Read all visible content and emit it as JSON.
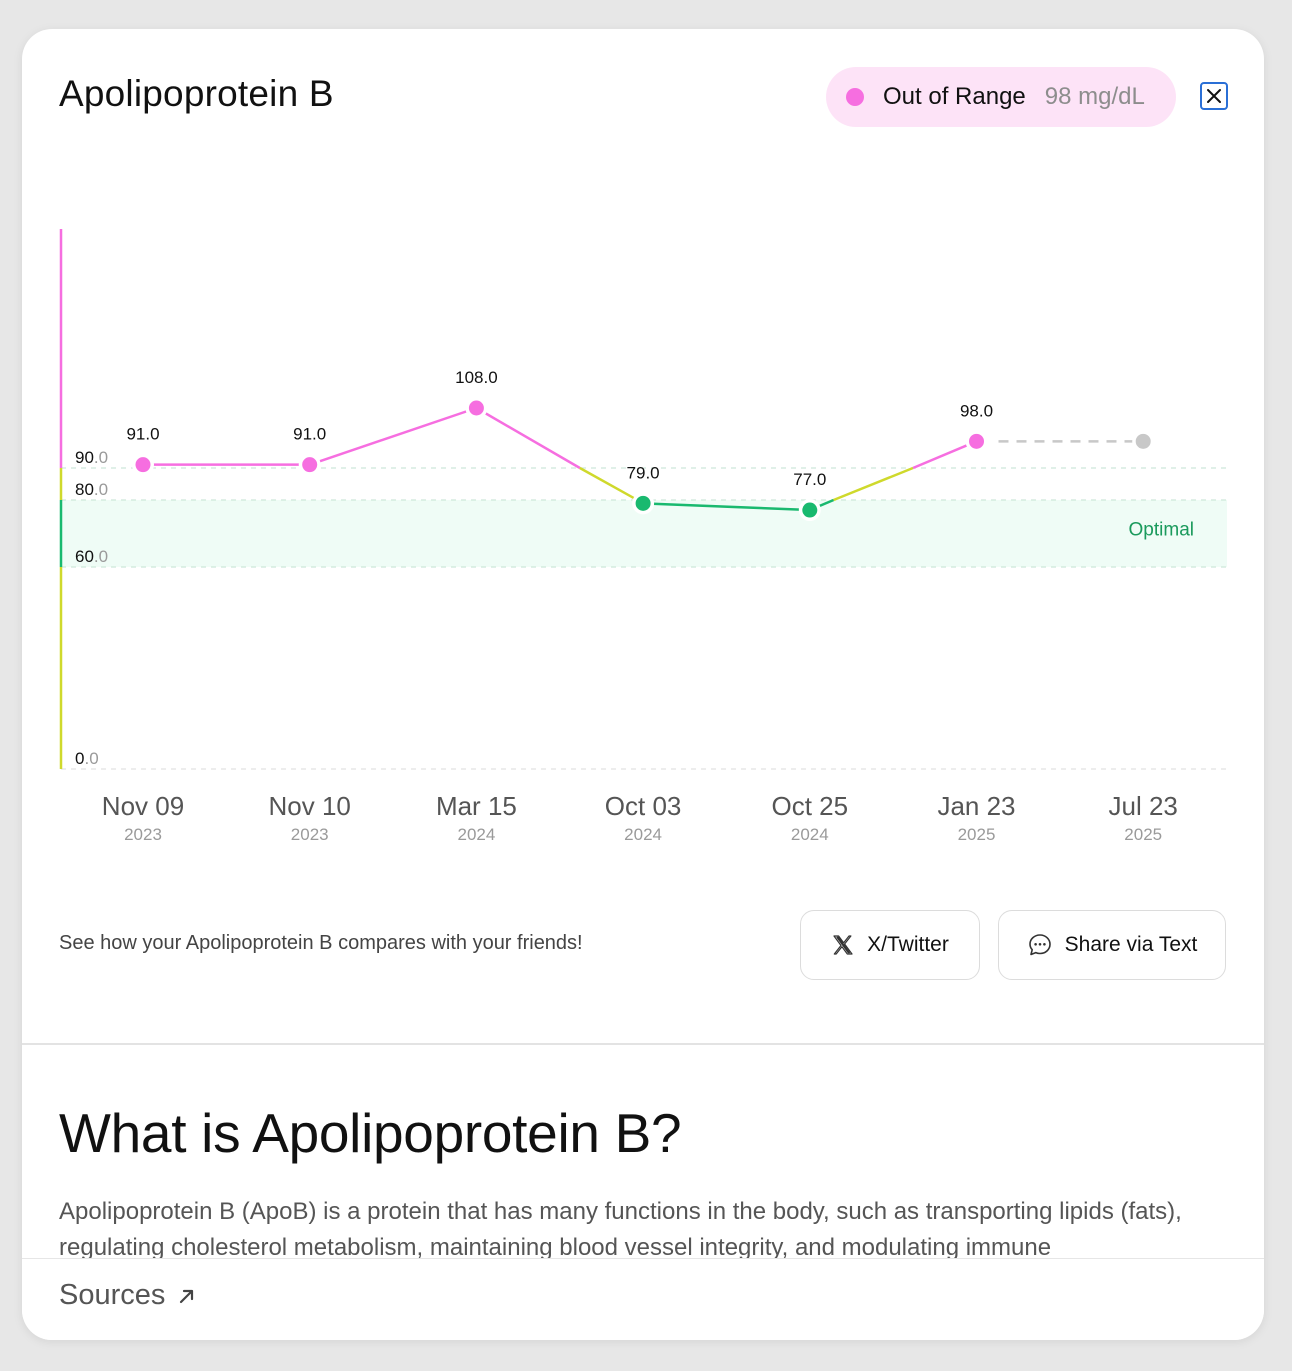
{
  "header": {
    "title": "Apolipoprotein B",
    "status_label": "Out of Range",
    "status_value": "98 mg/dL",
    "status_color": "#f66ee0"
  },
  "icons": {
    "close": "close-icon",
    "twitter": "x-twitter-icon",
    "message": "chat-bubble-icon",
    "external": "arrow-up-right-icon"
  },
  "colors": {
    "out_of_range": "#f66ee0",
    "borderline": "#cfd92c",
    "optimal": "#19b96f",
    "future": "#c8c8c8",
    "optimal_band": "#effcf6"
  },
  "chart_data": {
    "type": "line",
    "ylim": [
      0,
      120
    ],
    "y_ticks": [
      {
        "int": "0",
        "dec": ".0",
        "value": 0
      },
      {
        "int": "60",
        "dec": ".0",
        "value": 60
      },
      {
        "int": "80",
        "dec": ".0",
        "value": 80
      },
      {
        "int": "90",
        "dec": ".0",
        "value": 90
      }
    ],
    "optimal_range": [
      60,
      80
    ],
    "optimal_label": "Optimal",
    "points": [
      {
        "month": "Nov 09",
        "year": "2023",
        "value": 91.0,
        "label": "91.0"
      },
      {
        "month": "Nov 10",
        "year": "2023",
        "value": 91.0,
        "label": "91.0"
      },
      {
        "month": "Mar 15",
        "year": "2024",
        "value": 108.0,
        "label": "108.0"
      },
      {
        "month": "Oct 03",
        "year": "2024",
        "value": 79.0,
        "label": "79.0"
      },
      {
        "month": "Oct 25",
        "year": "2024",
        "value": 77.0,
        "label": "77.0"
      },
      {
        "month": "Jan 23",
        "year": "2025",
        "value": 98.0,
        "label": "98.0"
      },
      {
        "month": "Jul 23",
        "year": "2025",
        "value": 98.0,
        "label": "",
        "future": true
      }
    ]
  },
  "share": {
    "prompt": "See how your Apolipoprotein B compares with your friends!",
    "twitter_label": "X/Twitter",
    "text_label": "Share via Text"
  },
  "about": {
    "title": "What is Apolipoprotein B?",
    "body": "Apolipoprotein B (ApoB) is a protein that has many functions in the body, such as transporting lipids (fats), regulating cholesterol metabolism, maintaining blood vessel integrity, and modulating immune"
  },
  "footer": {
    "sources_label": "Sources"
  }
}
